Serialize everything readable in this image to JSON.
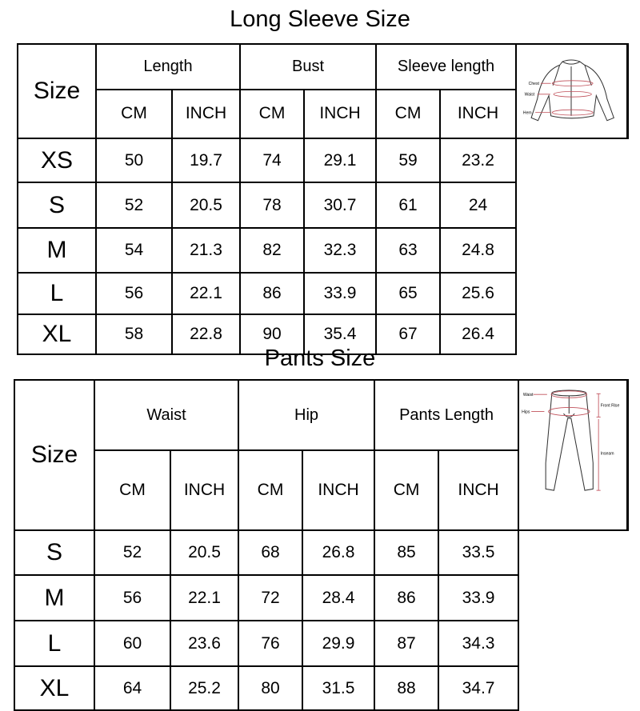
{
  "long_sleeve": {
    "title": "Long Sleeve Size",
    "size_header": "Size",
    "groups": [
      "Length",
      "Bust",
      "Sleeve length"
    ],
    "units": [
      "CM",
      "INCH",
      "CM",
      "INCH",
      "CM",
      "INCH"
    ],
    "rows": [
      {
        "size": "XS",
        "values": [
          "50",
          "19.7",
          "74",
          "29.1",
          "59",
          "23.2"
        ]
      },
      {
        "size": "S",
        "values": [
          "52",
          "20.5",
          "78",
          "30.7",
          "61",
          "24"
        ]
      },
      {
        "size": "M",
        "values": [
          "54",
          "21.3",
          "82",
          "32.3",
          "63",
          "24.8"
        ]
      },
      {
        "size": "L",
        "values": [
          "56",
          "22.1",
          "86",
          "33.9",
          "65",
          "25.6"
        ]
      },
      {
        "size": "XL",
        "values": [
          "58",
          "22.8",
          "90",
          "35.4",
          "67",
          "26.4"
        ]
      }
    ],
    "diagram_labels": {
      "chest": "Chest",
      "waist": "Waist",
      "hem": "Hem"
    }
  },
  "pants": {
    "title": "Pants Size",
    "size_header": "Size",
    "groups": [
      "Waist",
      "Hip",
      "Pants Length"
    ],
    "units": [
      "CM",
      "INCH",
      "CM",
      "INCH",
      "CM",
      "INCH"
    ],
    "rows": [
      {
        "size": "S",
        "values": [
          "52",
          "20.5",
          "68",
          "26.8",
          "85",
          "33.5"
        ]
      },
      {
        "size": "M",
        "values": [
          "56",
          "22.1",
          "72",
          "28.4",
          "86",
          "33.9"
        ]
      },
      {
        "size": "L",
        "values": [
          "60",
          "23.6",
          "76",
          "29.9",
          "87",
          "34.3"
        ]
      },
      {
        "size": "XL",
        "values": [
          "64",
          "25.2",
          "80",
          "31.5",
          "88",
          "34.7"
        ]
      }
    ],
    "diagram_labels": {
      "waist": "Waist",
      "hips": "Hips",
      "front_rise": "Front Rise",
      "inseam": "Inseam"
    }
  },
  "colors": {
    "measure_line": "#c0505a"
  }
}
